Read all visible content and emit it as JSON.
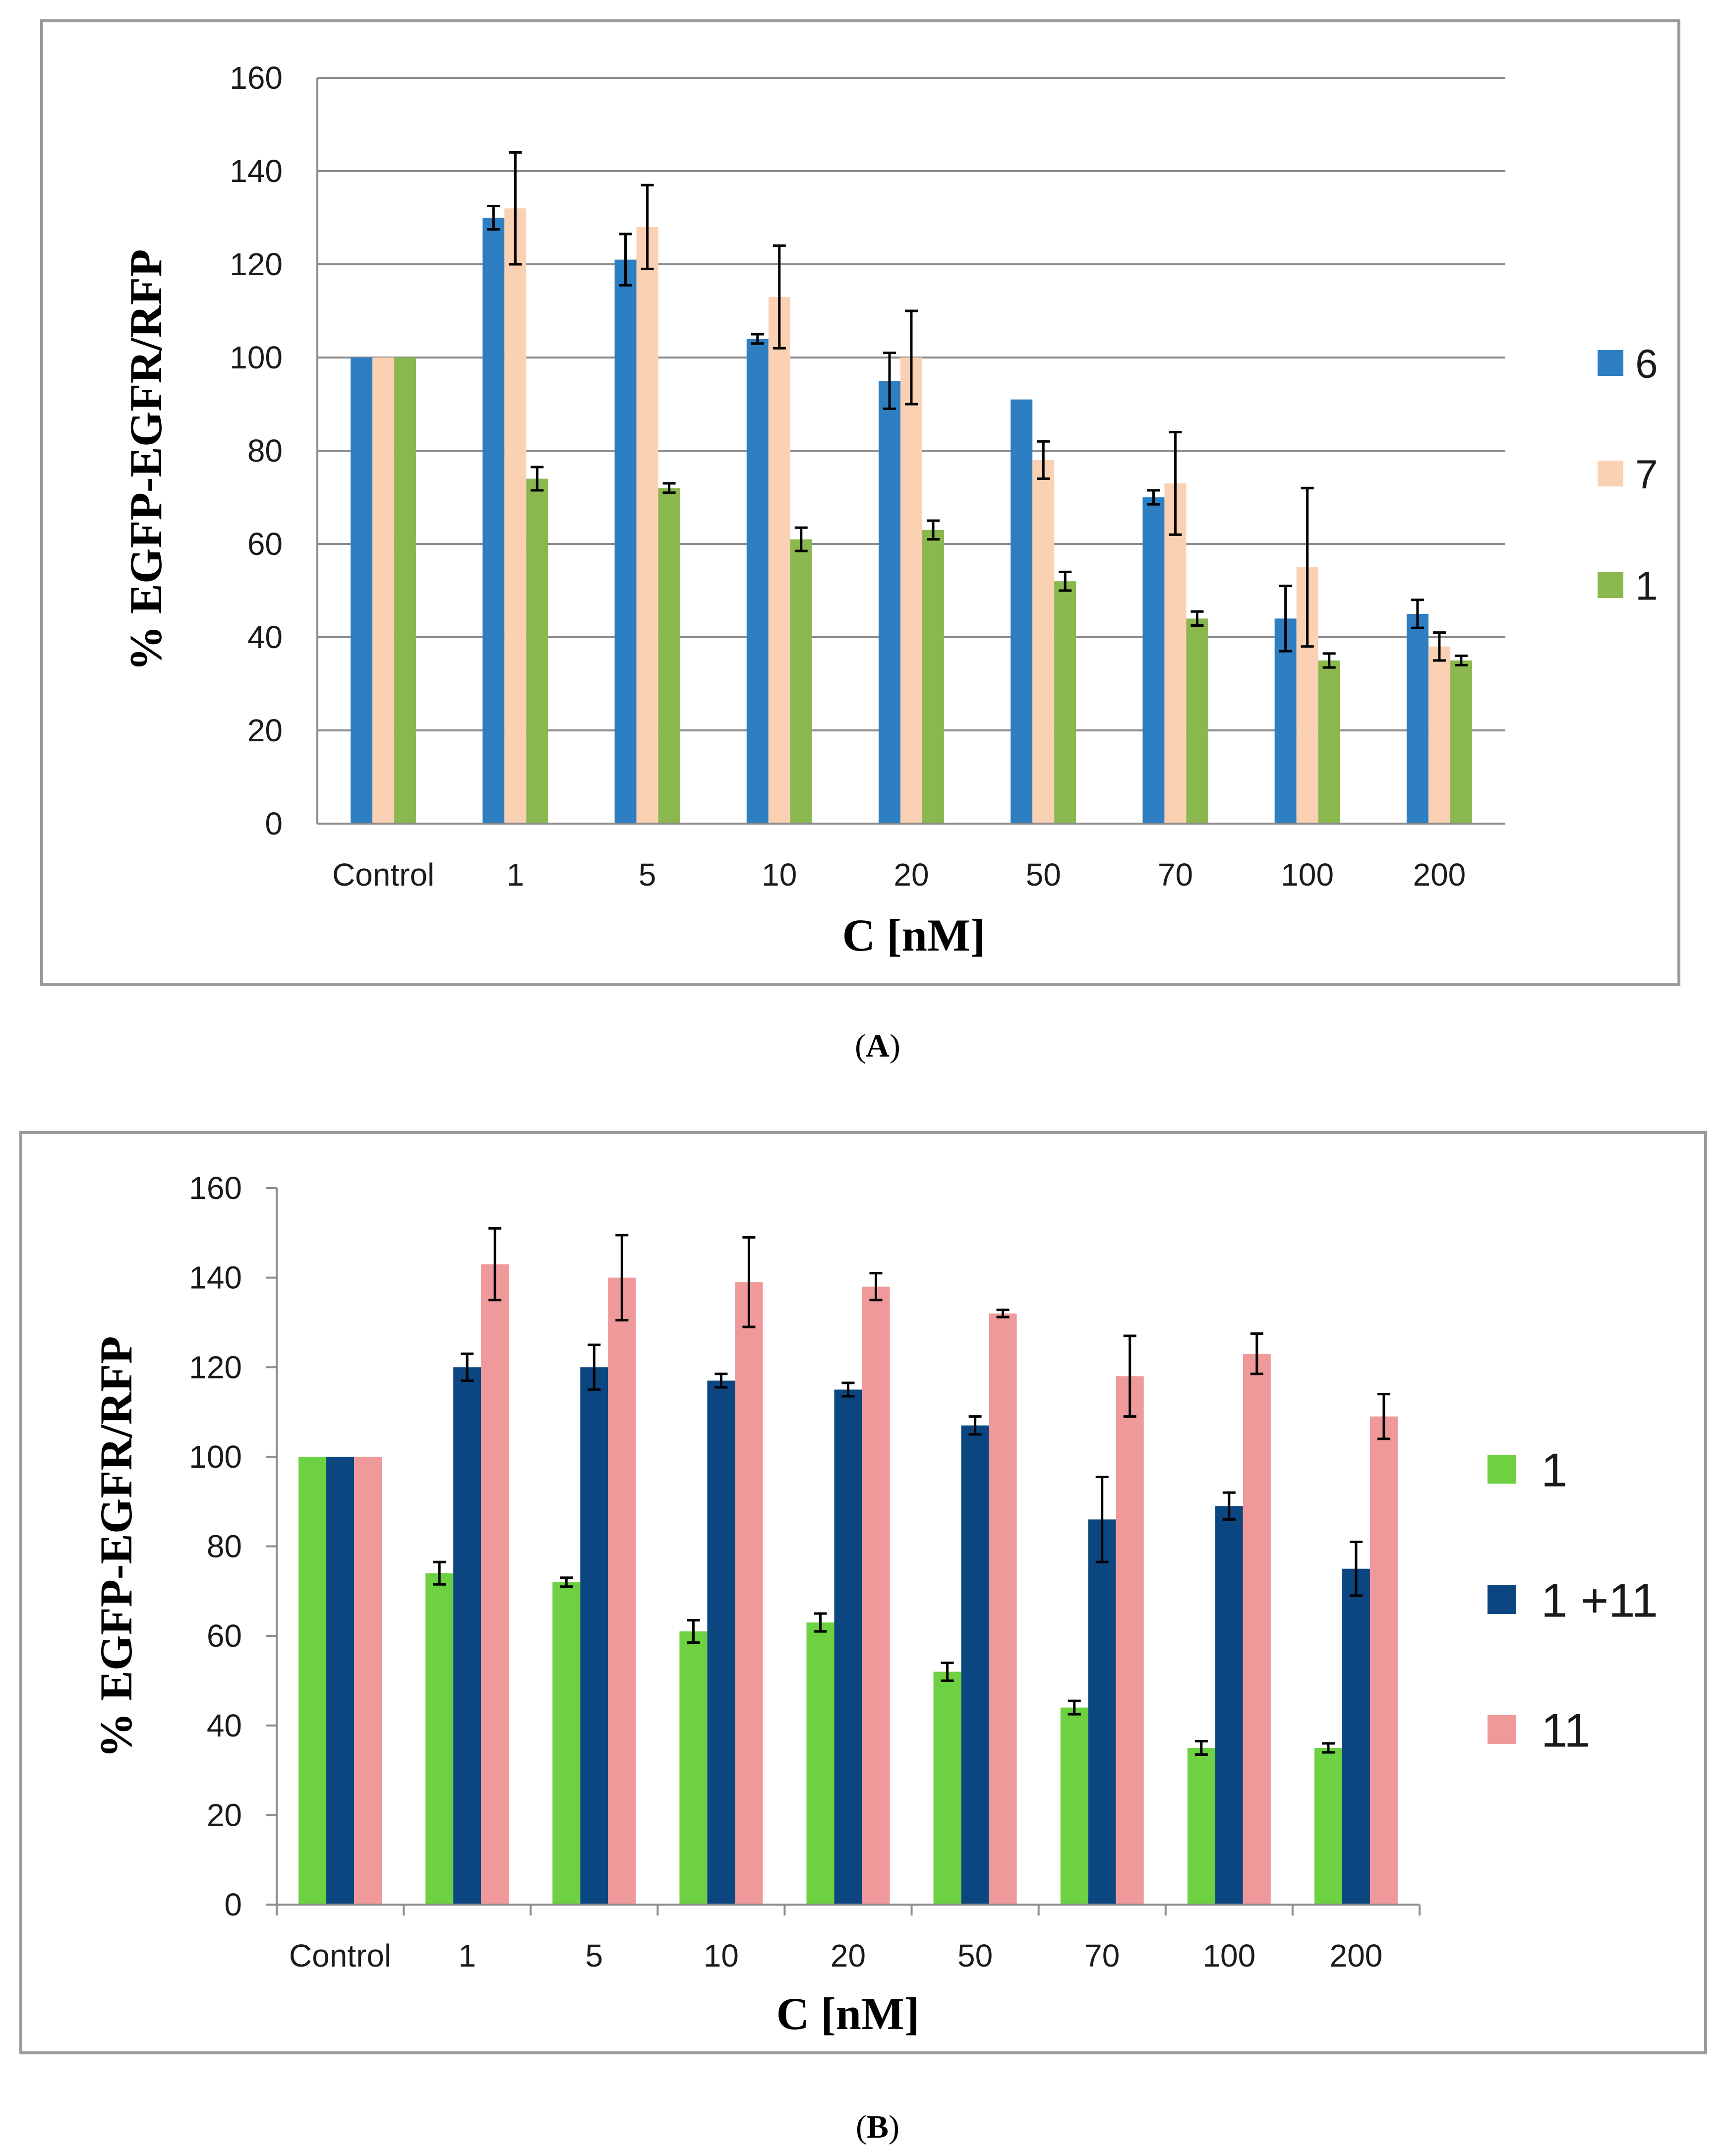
{
  "chart_data": [
    {
      "type": "bar",
      "panel_label": "A",
      "panel_label_prefix": "(",
      "panel_label_suffix": ")",
      "title": "",
      "xlabel": "C [nM]",
      "ylabel": "% EGFP-EGFR/RFP",
      "ylim": [
        0,
        160
      ],
      "yticks": [
        0,
        20,
        40,
        60,
        80,
        100,
        120,
        140,
        160
      ],
      "grid": true,
      "legend_position": "right",
      "categories": [
        "Control",
        "1",
        "5",
        "10",
        "20",
        "50",
        "70",
        "100",
        "200"
      ],
      "series": [
        {
          "name": "6",
          "color": "#2e7fc1",
          "values": [
            100,
            130,
            121,
            104,
            95,
            91,
            70,
            44,
            45
          ],
          "errors": [
            0,
            2.5,
            5.5,
            1,
            6,
            0,
            1.5,
            7,
            3
          ]
        },
        {
          "name": "7",
          "color": "#fbd1b3",
          "values": [
            100,
            132,
            128,
            113,
            100,
            78,
            73,
            55,
            38
          ],
          "errors": [
            0,
            12,
            9,
            11,
            10,
            4,
            11,
            17,
            3
          ]
        },
        {
          "name": "1",
          "color": "#8ab84e",
          "values": [
            100,
            74,
            72,
            61,
            63,
            52,
            44,
            35,
            35
          ],
          "errors": [
            0,
            2.5,
            1,
            2.5,
            2,
            2,
            1.5,
            1.5,
            1
          ]
        }
      ]
    },
    {
      "type": "bar",
      "panel_label": "B",
      "panel_label_prefix": "(",
      "panel_label_suffix": ")",
      "title": "",
      "xlabel": "C [nM]",
      "ylabel": "% EGFP-EGFR/RFP",
      "ylim": [
        0,
        160
      ],
      "yticks": [
        0,
        20,
        40,
        60,
        80,
        100,
        120,
        140,
        160
      ],
      "grid": false,
      "legend_position": "right",
      "categories": [
        "Control",
        "1",
        "5",
        "10",
        "20",
        "50",
        "70",
        "100",
        "200"
      ],
      "series": [
        {
          "name": "1",
          "color": "#6dd141",
          "values": [
            100,
            74,
            72,
            61,
            63,
            52,
            44,
            35,
            35
          ],
          "errors": [
            0,
            2.5,
            1,
            2.5,
            2,
            2,
            1.5,
            1.5,
            1
          ]
        },
        {
          "name": "1 +11",
          "color": "#0c4680",
          "values": [
            100,
            120,
            120,
            117,
            115,
            107,
            86,
            89,
            75
          ],
          "errors": [
            0,
            3,
            5,
            1.5,
            1.5,
            2,
            9.5,
            3,
            6
          ]
        },
        {
          "name": "11",
          "color": "#f0999b",
          "values": [
            100,
            143,
            140,
            139,
            138,
            132,
            118,
            123,
            109
          ],
          "errors": [
            0,
            8,
            9.5,
            10,
            3,
            0.8,
            9,
            4.5,
            5
          ]
        }
      ]
    }
  ]
}
